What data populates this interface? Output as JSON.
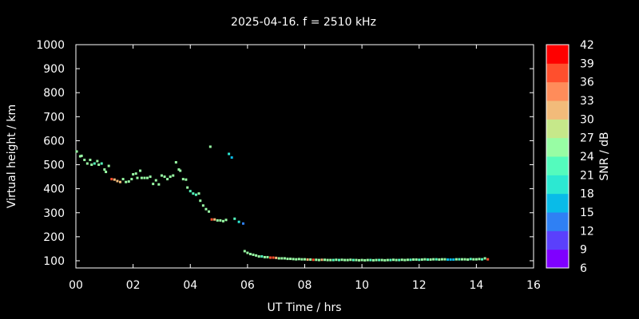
{
  "chart_data": {
    "type": "scatter",
    "title": "2025-04-16. f = 2510 kHz",
    "xlabel": "UT Time / hrs",
    "ylabel": "Virtual height / km",
    "xlim": [
      0,
      16
    ],
    "ylim": [
      70,
      1000
    ],
    "xticks": [
      "00",
      "02",
      "04",
      "06",
      "08",
      "10",
      "12",
      "14",
      "16"
    ],
    "xtick_values": [
      0,
      2,
      4,
      6,
      8,
      10,
      12,
      14,
      16
    ],
    "yticks": [
      100,
      200,
      300,
      400,
      500,
      600,
      700,
      800,
      900,
      1000
    ],
    "grid": false,
    "colorbar": {
      "label": "SNR / dB",
      "ticks": [
        6,
        9,
        12,
        15,
        18,
        21,
        24,
        27,
        30,
        33,
        36,
        39,
        42
      ],
      "min": 6,
      "max": 42,
      "colors": [
        "#7f00ff",
        "#5a40fc",
        "#2f80f4",
        "#09bbe8",
        "#2ce8d2",
        "#54fbbd",
        "#98fda4",
        "#c6e88a",
        "#f2bb7a",
        "#ff8c5a",
        "#ff4f2d",
        "#ff0000"
      ]
    },
    "points": [
      [
        0.03,
        555,
        24
      ],
      [
        0.15,
        535,
        24
      ],
      [
        0.2,
        537,
        24
      ],
      [
        0.3,
        520,
        24
      ],
      [
        0.4,
        505,
        24
      ],
      [
        0.5,
        520,
        24
      ],
      [
        0.55,
        500,
        24
      ],
      [
        0.65,
        505,
        22
      ],
      [
        0.75,
        515,
        24
      ],
      [
        0.8,
        500,
        24
      ],
      [
        0.9,
        505,
        22
      ],
      [
        1.0,
        480,
        24
      ],
      [
        1.05,
        470,
        24
      ],
      [
        1.15,
        495,
        24
      ],
      [
        1.25,
        440,
        36
      ],
      [
        1.35,
        438,
        30
      ],
      [
        1.45,
        432,
        30
      ],
      [
        1.55,
        428,
        30
      ],
      [
        1.65,
        440,
        24
      ],
      [
        1.75,
        428,
        24
      ],
      [
        1.85,
        430,
        24
      ],
      [
        1.95,
        440,
        24
      ],
      [
        2.0,
        460,
        24
      ],
      [
        2.1,
        463,
        24
      ],
      [
        2.15,
        445,
        24
      ],
      [
        2.25,
        475,
        24
      ],
      [
        2.3,
        445,
        24
      ],
      [
        2.4,
        445,
        24
      ],
      [
        2.5,
        445,
        24
      ],
      [
        2.6,
        450,
        24
      ],
      [
        2.7,
        420,
        24
      ],
      [
        2.8,
        435,
        24
      ],
      [
        2.9,
        418,
        24
      ],
      [
        3.0,
        455,
        24
      ],
      [
        3.1,
        450,
        24
      ],
      [
        3.2,
        440,
        24
      ],
      [
        3.3,
        450,
        24
      ],
      [
        3.4,
        455,
        24
      ],
      [
        3.5,
        510,
        24
      ],
      [
        3.6,
        480,
        24
      ],
      [
        3.65,
        475,
        24
      ],
      [
        3.75,
        440,
        24
      ],
      [
        3.85,
        438,
        24
      ],
      [
        3.9,
        405,
        24
      ],
      [
        4.0,
        390,
        22
      ],
      [
        4.1,
        380,
        22
      ],
      [
        4.2,
        375,
        22
      ],
      [
        4.3,
        380,
        24
      ],
      [
        4.35,
        350,
        24
      ],
      [
        4.45,
        330,
        24
      ],
      [
        4.55,
        315,
        24
      ],
      [
        4.65,
        305,
        24
      ],
      [
        4.7,
        575,
        24
      ],
      [
        4.75,
        272,
        36
      ],
      [
        4.85,
        272,
        30
      ],
      [
        4.95,
        268,
        24
      ],
      [
        5.05,
        268,
        24
      ],
      [
        5.15,
        265,
        24
      ],
      [
        5.25,
        270,
        24
      ],
      [
        5.35,
        545,
        18
      ],
      [
        5.45,
        530,
        15
      ],
      [
        5.55,
        275,
        22
      ],
      [
        5.7,
        262,
        18
      ],
      [
        5.85,
        255,
        12
      ],
      [
        5.9,
        140,
        24
      ],
      [
        6.0,
        133,
        24
      ],
      [
        6.1,
        128,
        24
      ],
      [
        6.2,
        125,
        24
      ],
      [
        6.3,
        122,
        24
      ],
      [
        6.4,
        118,
        24
      ],
      [
        6.5,
        118,
        22
      ],
      [
        6.6,
        115,
        24
      ],
      [
        6.7,
        115,
        24
      ],
      [
        6.8,
        113,
        36
      ],
      [
        6.9,
        113,
        36
      ],
      [
        7.0,
        112,
        30
      ],
      [
        7.1,
        110,
        24
      ],
      [
        7.2,
        110,
        24
      ],
      [
        7.3,
        110,
        24
      ],
      [
        7.4,
        108,
        24
      ],
      [
        7.5,
        108,
        24
      ],
      [
        7.6,
        107,
        24
      ],
      [
        7.7,
        106,
        24
      ],
      [
        7.8,
        107,
        24
      ],
      [
        7.9,
        106,
        24
      ],
      [
        8.0,
        106,
        24
      ],
      [
        8.1,
        105,
        30
      ],
      [
        8.2,
        105,
        24
      ],
      [
        8.3,
        104,
        36
      ],
      [
        8.4,
        104,
        24
      ],
      [
        8.5,
        103,
        24
      ],
      [
        8.6,
        104,
        30
      ],
      [
        8.7,
        104,
        24
      ],
      [
        8.8,
        103,
        24
      ],
      [
        8.9,
        103,
        24
      ],
      [
        9.0,
        103,
        22
      ],
      [
        9.1,
        104,
        24
      ],
      [
        9.2,
        103,
        22
      ],
      [
        9.3,
        104,
        24
      ],
      [
        9.4,
        103,
        24
      ],
      [
        9.5,
        103,
        24
      ],
      [
        9.6,
        104,
        24
      ],
      [
        9.7,
        103,
        22
      ],
      [
        9.8,
        103,
        24
      ],
      [
        9.9,
        102,
        24
      ],
      [
        10.0,
        103,
        24
      ],
      [
        10.1,
        102,
        24
      ],
      [
        10.2,
        103,
        24
      ],
      [
        10.3,
        103,
        22
      ],
      [
        10.4,
        102,
        24
      ],
      [
        10.5,
        103,
        24
      ],
      [
        10.6,
        103,
        22
      ],
      [
        10.7,
        103,
        24
      ],
      [
        10.8,
        102,
        24
      ],
      [
        10.9,
        103,
        24
      ],
      [
        11.0,
        103,
        22
      ],
      [
        11.1,
        104,
        24
      ],
      [
        11.2,
        103,
        24
      ],
      [
        11.3,
        103,
        22
      ],
      [
        11.4,
        104,
        24
      ],
      [
        11.5,
        103,
        24
      ],
      [
        11.6,
        104,
        24
      ],
      [
        11.7,
        104,
        22
      ],
      [
        11.8,
        105,
        24
      ],
      [
        11.9,
        105,
        24
      ],
      [
        12.0,
        104,
        22
      ],
      [
        12.1,
        105,
        24
      ],
      [
        12.2,
        106,
        24
      ],
      [
        12.3,
        105,
        22
      ],
      [
        12.4,
        105,
        24
      ],
      [
        12.5,
        106,
        24
      ],
      [
        12.6,
        106,
        22
      ],
      [
        12.7,
        105,
        24
      ],
      [
        12.8,
        106,
        24
      ],
      [
        12.9,
        106,
        24
      ],
      [
        13.0,
        105,
        15
      ],
      [
        13.1,
        105,
        15
      ],
      [
        13.2,
        105,
        15
      ],
      [
        13.3,
        106,
        24
      ],
      [
        13.4,
        106,
        22
      ],
      [
        13.5,
        106,
        24
      ],
      [
        13.6,
        106,
        24
      ],
      [
        13.7,
        105,
        24
      ],
      [
        13.8,
        107,
        22
      ],
      [
        13.9,
        106,
        24
      ],
      [
        14.0,
        106,
        24
      ],
      [
        14.1,
        107,
        24
      ],
      [
        14.2,
        106,
        22
      ],
      [
        14.3,
        110,
        24
      ],
      [
        14.4,
        106,
        36
      ]
    ]
  }
}
